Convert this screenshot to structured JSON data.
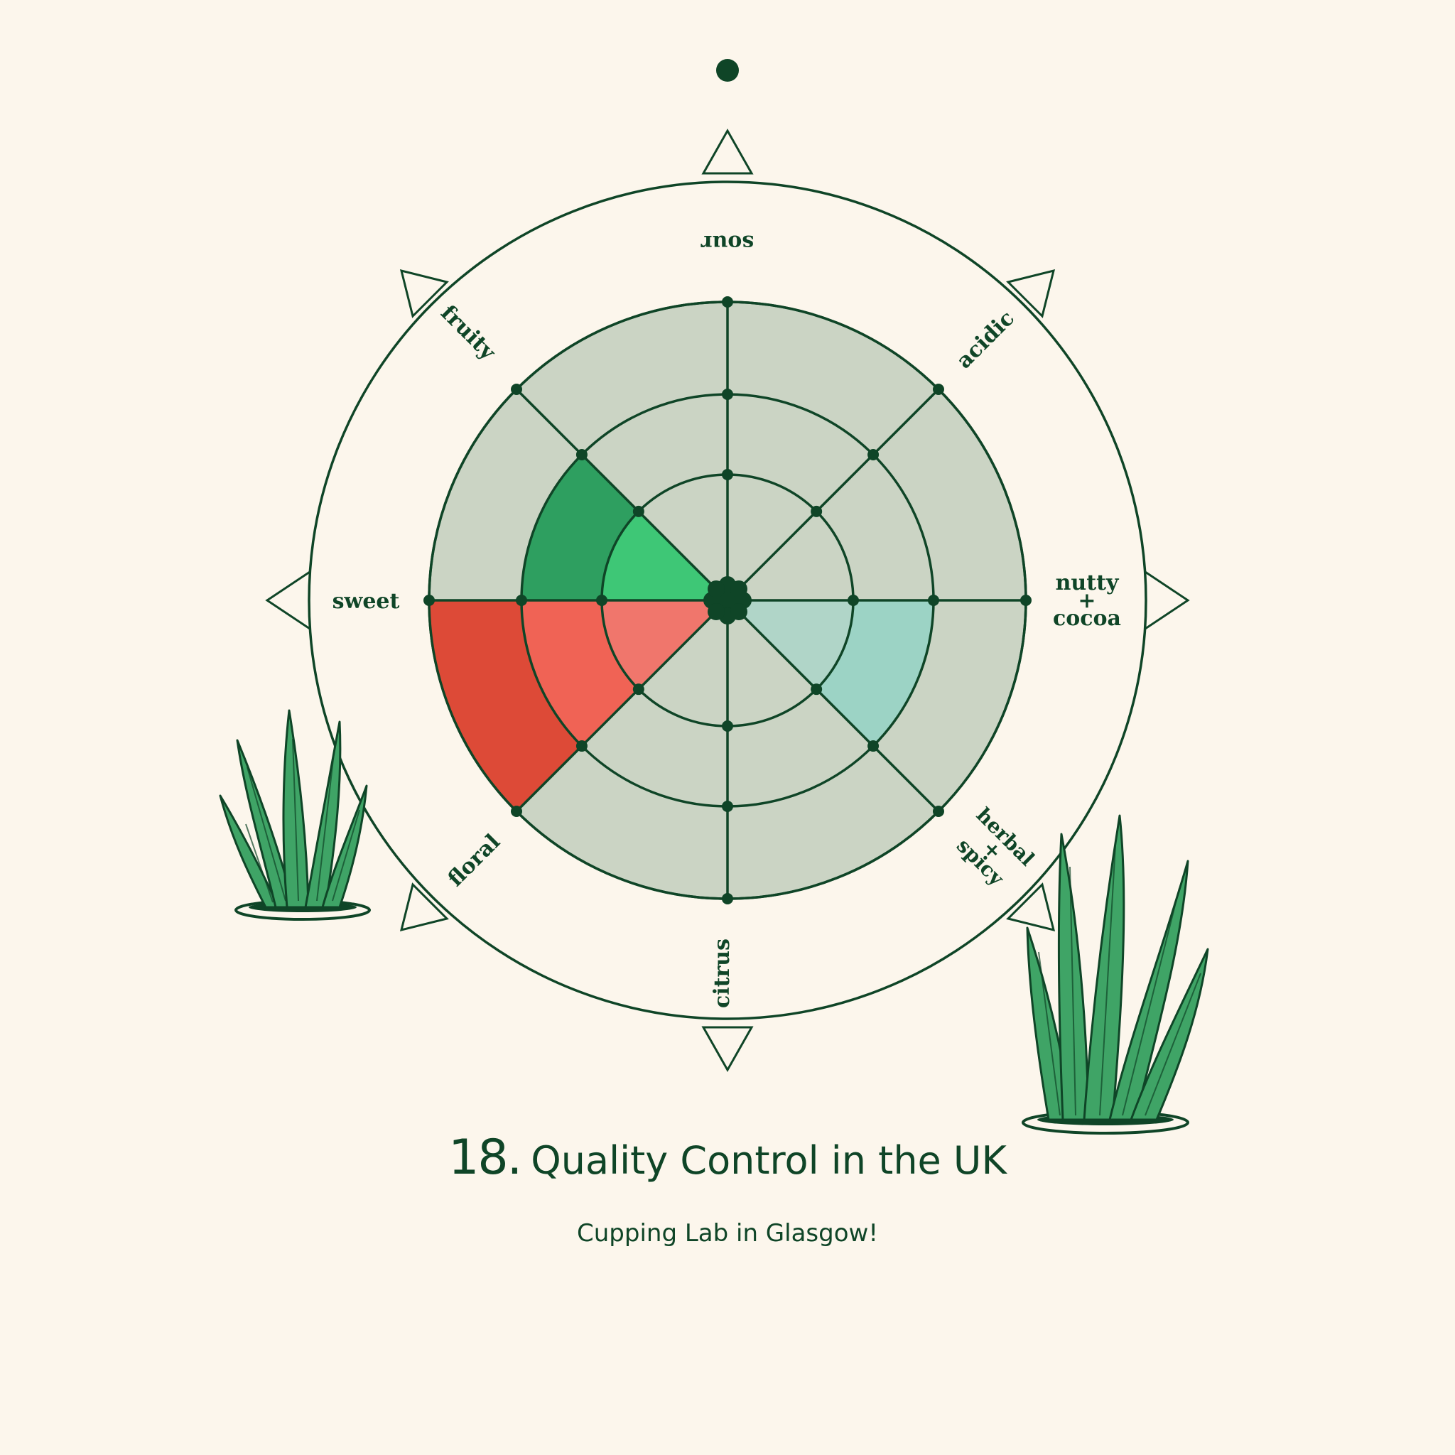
{
  "title": {
    "number": "18.",
    "text": "Quality Control in the UK"
  },
  "subtitle": "Cupping Lab in Glasgow!",
  "wheel": {
    "axes": [
      {
        "label": "sour"
      },
      {
        "label": "acidic"
      },
      {
        "label": "nutty",
        "label2": "+",
        "label3": "cocoa"
      },
      {
        "label": "herbal",
        "label2": "+",
        "label3": "spicy"
      },
      {
        "label": "citrus"
      },
      {
        "label": "floral"
      },
      {
        "label": "sweet"
      },
      {
        "label": "fruity"
      }
    ],
    "rings": 4,
    "segments": [
      {
        "between": [
          "nutty + cocoa",
          "herbal + spicy"
        ],
        "level": 3,
        "color": "#9cd3c5"
      },
      {
        "between": [
          "sweet",
          "floral"
        ],
        "level": 4,
        "color_outer": "#dd4a37",
        "color_mid": "#f06355",
        "color_inner": "#f0766c"
      },
      {
        "between": [
          "fruity",
          "sweet"
        ],
        "level": 3,
        "color_mid": "#2e9f60",
        "color_inner": "#3ec776"
      }
    ]
  },
  "colors": {
    "background": "#fcf6ec",
    "ink": "#0f4527",
    "plate": "#cbd4c4",
    "plant": "#3fa466"
  }
}
